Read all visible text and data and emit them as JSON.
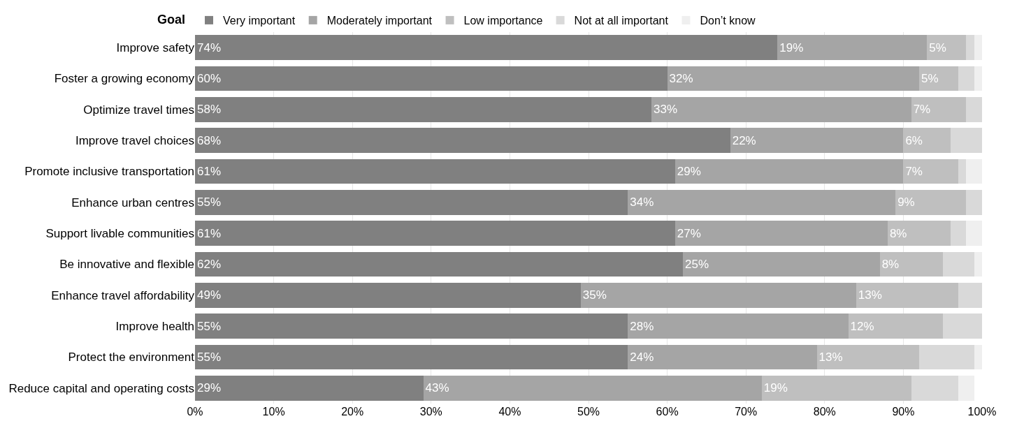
{
  "chart_data": {
    "type": "bar",
    "orientation": "horizontal",
    "stacked": true,
    "ylabel": "Goal",
    "categories": [
      "Improve safety",
      "Foster a growing economy",
      "Optimize travel times",
      "Improve travel choices",
      "Promote inclusive transportation",
      "Enhance urban centres",
      "Support livable communities",
      "Be innovative and flexible",
      "Enhance travel affordability",
      "Improve health",
      "Protect the environment",
      "Reduce capital and operating costs"
    ],
    "series": [
      {
        "name": "Very important",
        "color": "#808080",
        "values": [
          74,
          60,
          58,
          68,
          61,
          55,
          61,
          62,
          49,
          55,
          55,
          29
        ],
        "value_labels": [
          "74%",
          "60%",
          "58%",
          "68%",
          "61%",
          "55%",
          "61%",
          "62%",
          "49%",
          "55%",
          "55%",
          "29%"
        ]
      },
      {
        "name": "Moderately important",
        "color": "#a5a5a5",
        "values": [
          19,
          32,
          33,
          22,
          29,
          34,
          27,
          25,
          35,
          28,
          24,
          43
        ],
        "value_labels": [
          "19%",
          "32%",
          "33%",
          "22%",
          "29%",
          "34%",
          "27%",
          "25%",
          "35%",
          "28%",
          "24%",
          "43%"
        ]
      },
      {
        "name": "Low importance",
        "color": "#bfbfbf",
        "values": [
          5,
          5,
          7,
          6,
          7,
          9,
          8,
          8,
          13,
          12,
          13,
          19
        ],
        "value_labels": [
          "5%",
          "5%",
          "7%",
          "6%",
          "7%",
          "9%",
          "8%",
          "8%",
          "13%",
          "12%",
          "13%",
          "19%"
        ]
      },
      {
        "name": "Not at all important",
        "color": "#d9d9d9",
        "values": [
          1,
          2,
          2,
          4,
          1,
          2,
          2,
          4,
          3,
          5,
          7,
          6
        ]
      },
      {
        "name": "Don’t know",
        "color": "#efefef",
        "values": [
          1,
          1,
          0,
          0,
          2,
          0,
          2,
          1,
          0,
          0,
          1,
          2
        ]
      }
    ],
    "xlim": [
      0,
      100
    ],
    "xticks": [
      {
        "value": 0,
        "label": "0%"
      },
      {
        "value": 10,
        "label": "10%"
      },
      {
        "value": 20,
        "label": "20%"
      },
      {
        "value": 30,
        "label": "30%"
      },
      {
        "value": 40,
        "label": "40%"
      },
      {
        "value": 50,
        "label": "50%"
      },
      {
        "value": 60,
        "label": "60%"
      },
      {
        "value": 70,
        "label": "70%"
      },
      {
        "value": 80,
        "label": "80%"
      },
      {
        "value": 90,
        "label": "90%"
      },
      {
        "value": 100,
        "label": "100%"
      }
    ],
    "grid": "x",
    "legend": "top"
  }
}
